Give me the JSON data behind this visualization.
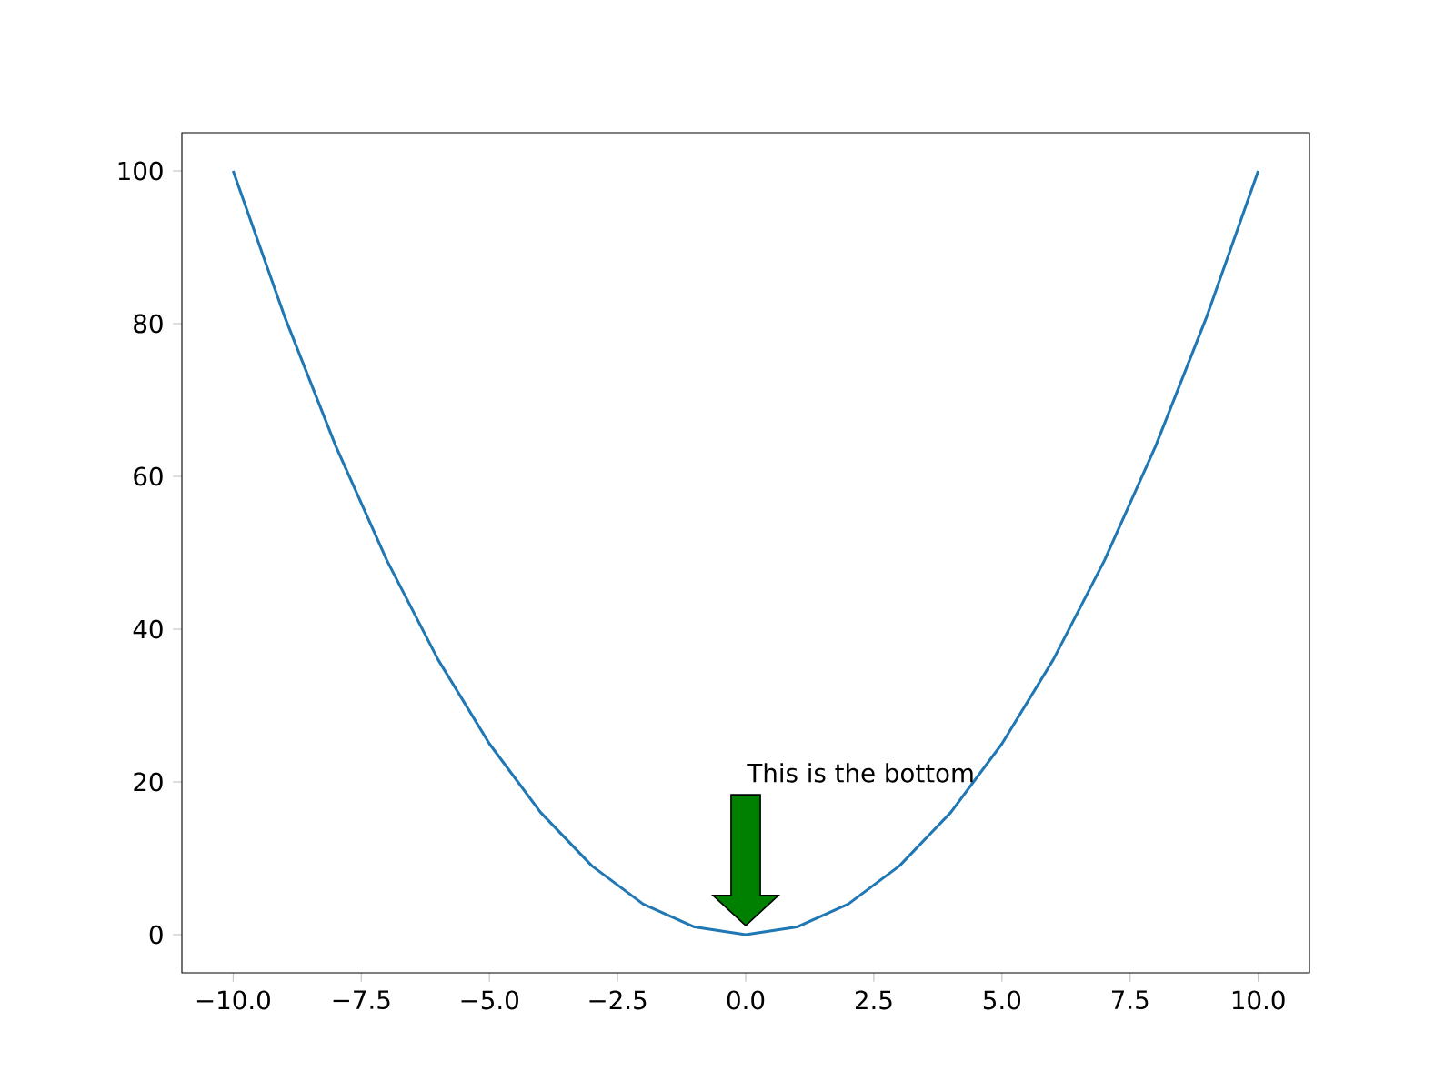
{
  "chart_data": {
    "type": "line",
    "x": [
      -10,
      -9,
      -8,
      -7,
      -6,
      -5,
      -4,
      -3,
      -2,
      -1,
      0,
      1,
      2,
      3,
      4,
      5,
      6,
      7,
      8,
      9,
      10
    ],
    "values": [
      100,
      81,
      64,
      49,
      36,
      25,
      16,
      9,
      4,
      1,
      0,
      1,
      4,
      9,
      16,
      25,
      36,
      49,
      64,
      81,
      100
    ],
    "color": "#1f77b4",
    "xlim": [
      -11,
      11
    ],
    "ylim": [
      -5,
      105
    ],
    "xticks": [
      {
        "value": -10,
        "label": "−10.0"
      },
      {
        "value": -7.5,
        "label": "−7.5"
      },
      {
        "value": -5,
        "label": "−5.0"
      },
      {
        "value": -2.5,
        "label": "−2.5"
      },
      {
        "value": 0,
        "label": "0.0"
      },
      {
        "value": 2.5,
        "label": "2.5"
      },
      {
        "value": 5,
        "label": "5.0"
      },
      {
        "value": 7.5,
        "label": "7.5"
      },
      {
        "value": 10,
        "label": "10.0"
      }
    ],
    "yticks": [
      0,
      20,
      40,
      60,
      80,
      100
    ],
    "annotations": [
      "This is the bottom"
    ]
  }
}
